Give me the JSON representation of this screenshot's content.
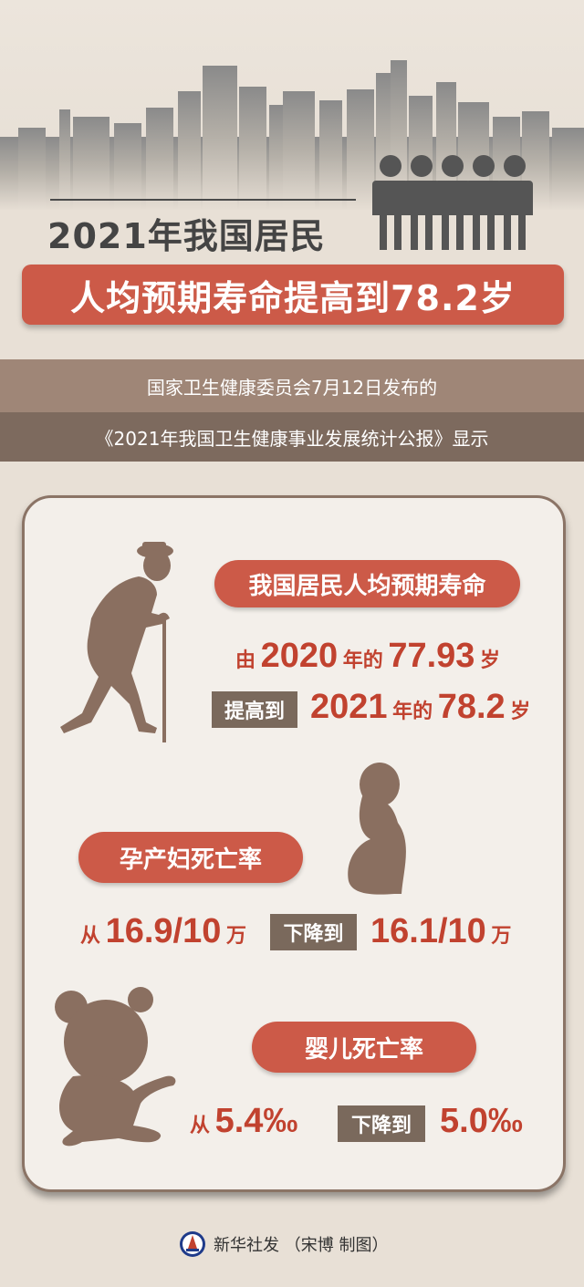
{
  "header": {
    "title": "2021年我国居民",
    "headline": "人均预期寿命提高到78.2岁",
    "source_line1": "国家卫生健康委员会7月12日发布的",
    "source_line2": "《2021年我国卫生健康事业发展统计公报》显示"
  },
  "life_expectancy": {
    "label": "我国居民人均预期寿命",
    "from_prefix": "由",
    "from_year": "2020",
    "from_mid": "年的",
    "from_value": "77.93",
    "from_unit": "岁",
    "tag": "提高到",
    "to_year": "2021",
    "to_mid": "年的",
    "to_value": "78.2",
    "to_unit": "岁"
  },
  "maternal_mortality": {
    "label": "孕产妇死亡率",
    "from_prefix": "从",
    "from_value": "16.9/10",
    "from_unit": "万",
    "tag": "下降到",
    "to_value": "16.1/10",
    "to_unit": "万"
  },
  "infant_mortality": {
    "label": "婴儿死亡率",
    "from_prefix": "从",
    "from_value": "5.4‰",
    "tag": "下降到",
    "to_value": "5.0‰"
  },
  "footer": {
    "credit": "新华社发 （宋博 制图）",
    "logo_icon": "xinhua-logo-icon"
  },
  "colors": {
    "accent_red": "#cc5a48",
    "text_red": "#c1422f",
    "brown_band": "#9f8677",
    "dark_brown": "#7d6a5e",
    "silhouette": "#8a6f60"
  }
}
